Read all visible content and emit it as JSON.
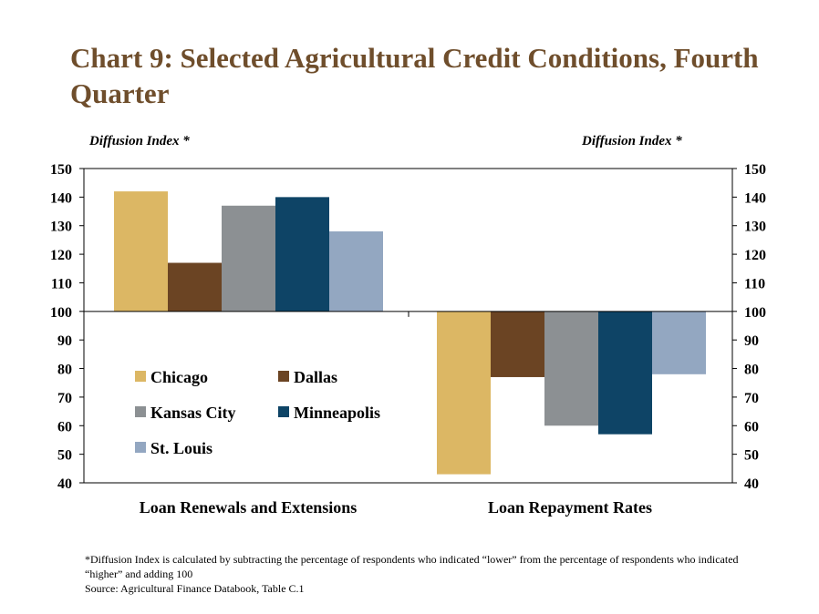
{
  "title": "Chart 9: Selected Agricultural Credit Conditions, Fourth Quarter",
  "footnote": {
    "definition": "*Diffusion Index is calculated by subtracting the percentage of respondents who indicated “lower” from the percentage of respondents who indicated “higher” and adding 100",
    "source": "Source: Agricultural Finance Databook, Table C.1"
  },
  "colors": {
    "title": "#6f4e2c",
    "Chicago": "#dcb764",
    "Dallas": "#6b4423",
    "Kansas City": "#8c9093",
    "Minneapolis": "#0e4466",
    "St. Louis": "#93a7c1"
  },
  "chart_data": {
    "type": "bar",
    "ylabel_left": "Diffusion Index *",
    "ylabel_right": "Diffusion Index *",
    "ylim": [
      40,
      150
    ],
    "yticks": [
      40,
      50,
      60,
      70,
      80,
      90,
      100,
      110,
      120,
      130,
      140,
      150
    ],
    "baseline": 100,
    "categories": [
      "Loan Renewals and Extensions",
      "Loan Repayment Rates"
    ],
    "series": [
      {
        "name": "Chicago",
        "values": [
          142,
          43
        ]
      },
      {
        "name": "Dallas",
        "values": [
          117,
          77
        ]
      },
      {
        "name": "Kansas City",
        "values": [
          137,
          60
        ]
      },
      {
        "name": "Minneapolis",
        "values": [
          140,
          57
        ]
      },
      {
        "name": "St. Louis",
        "values": [
          128,
          78
        ]
      }
    ],
    "legend_position": "inside-lower-left"
  }
}
